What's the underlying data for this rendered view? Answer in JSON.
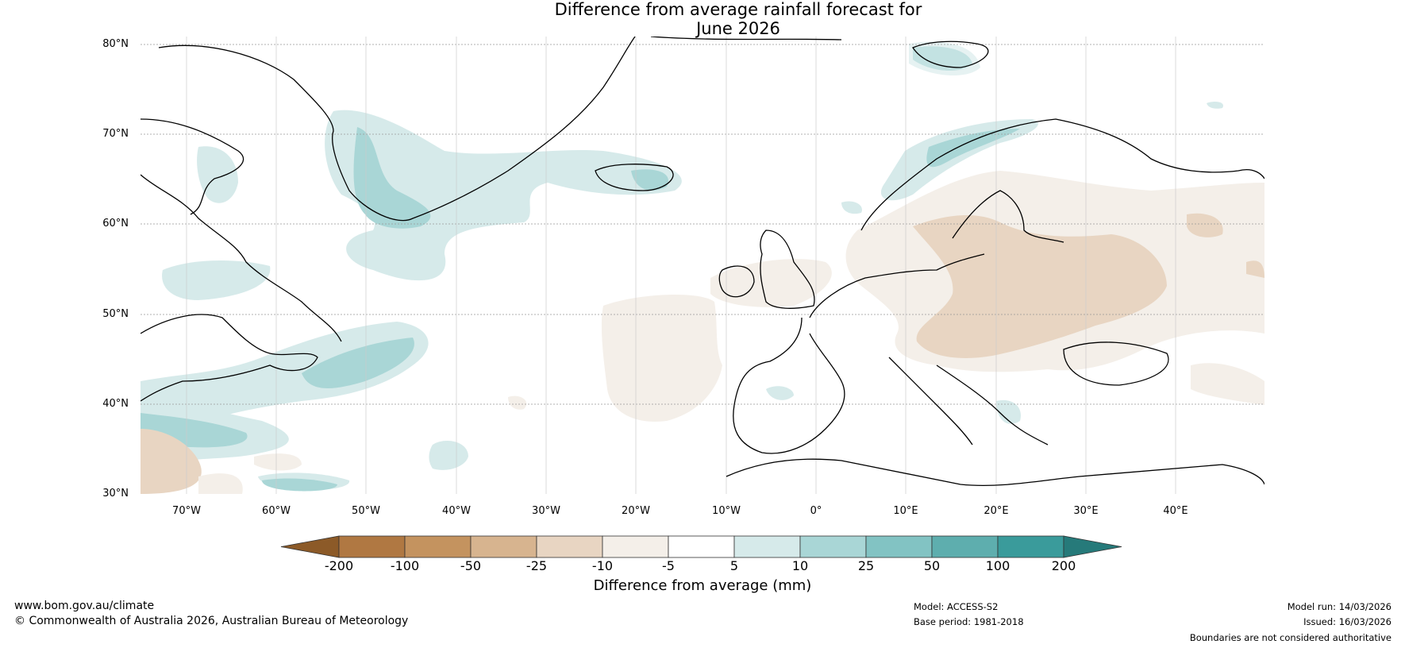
{
  "title_line1": "Difference from average rainfall forecast for",
  "title_line2": "June 2026",
  "lat_labels": [
    "80°N",
    "70°N",
    "60°N",
    "50°N",
    "40°N",
    "30°N"
  ],
  "lon_labels": [
    "70°W",
    "60°W",
    "50°W",
    "40°W",
    "30°W",
    "20°W",
    "10°W",
    "0°",
    "10°E",
    "20°E",
    "30°E",
    "40°E"
  ],
  "colorbar": {
    "ticks": [
      "-200",
      "-100",
      "-50",
      "-25",
      "-10",
      "-5",
      "5",
      "10",
      "25",
      "50",
      "100",
      "200"
    ],
    "colors": [
      "#8c5a28",
      "#b07842",
      "#c4935f",
      "#d7b48f",
      "#e8d5c2",
      "#f4efe9",
      "#ffffff",
      "#d6eaea",
      "#a9d6d6",
      "#82c3c3",
      "#5eaeae",
      "#3a9b9b",
      "#267a7a"
    ],
    "label": "Difference from average (mm)"
  },
  "footer": {
    "website": "www.bom.gov.au/climate",
    "copyright": "© Commonwealth of Australia 2026, Australian Bureau of Meteorology",
    "model": "Model: ACCESS-S2",
    "base_period": "Base period: 1981-2018",
    "model_run": "Model run: 14/03/2026",
    "issued": "Issued: 16/03/2026",
    "disclaimer": "Boundaries are not considered authoritative"
  }
}
